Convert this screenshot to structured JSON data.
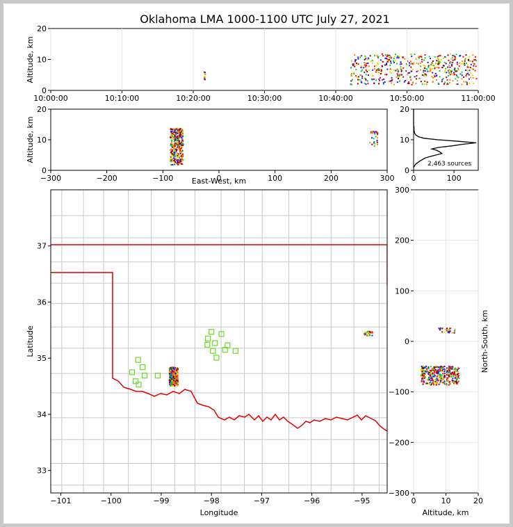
{
  "title": "Oklahoma LMA 1000-1100 UTC July 27, 2021",
  "colors": {
    "state_border": "#e00000",
    "county": "#c8c8c8",
    "station": "#66dd22",
    "grid": "#e6e6e6",
    "frame_bg": "#c8c8c8",
    "sources": [
      "#1a1aff",
      "#00cc44",
      "#dddd00",
      "#ff8800",
      "#ff0000",
      "#880000"
    ]
  },
  "chart_data": [
    {
      "id": "time_height",
      "type": "scatter",
      "ylabel": "Altitude, km",
      "ylim": [
        0,
        20
      ],
      "yticks": [
        "0",
        "10",
        "20"
      ],
      "xlim_seconds": [
        0,
        3600
      ],
      "xticks": [
        "10:00:00",
        "10:10:00",
        "10:20:00",
        "10:30:00",
        "10:40:00",
        "10:50:00",
        "11:00:00"
      ],
      "clusters": [
        {
          "t": [
            1285,
            1295
          ],
          "alt": [
            3,
            6.5
          ],
          "n": 12
        },
        {
          "t": [
            2520,
            3580
          ],
          "alt": [
            2,
            12
          ],
          "n": 520
        }
      ]
    },
    {
      "id": "ew_altitude",
      "type": "scatter",
      "xlabel": "East-West, km",
      "ylabel": "Altitude, km",
      "xlim": [
        -300,
        300
      ],
      "ylim": [
        0,
        20
      ],
      "xticks": [
        "−300",
        "−200",
        "−100",
        "0",
        "100",
        "200",
        "300"
      ],
      "yticks": [
        "0",
        "10",
        "20"
      ],
      "clusters": [
        {
          "x": [
            -88,
            -65
          ],
          "alt": [
            2,
            14
          ],
          "n": 360
        },
        {
          "x": [
            268,
            282
          ],
          "alt": [
            8,
            13
          ],
          "n": 30
        }
      ]
    },
    {
      "id": "altitude_histogram",
      "type": "line",
      "annotation": "2,463 sources",
      "xlim": [
        0,
        160
      ],
      "ylim": [
        0,
        20
      ],
      "xticks": [
        "0",
        "100"
      ],
      "yticks": [
        "0",
        "10",
        "20"
      ],
      "alt": [
        1.0,
        2.0,
        3.0,
        4.0,
        4.5,
        5.0,
        5.5,
        6.0,
        6.5,
        7.0,
        7.5,
        8.0,
        8.5,
        9.0,
        9.5,
        10.0,
        10.5,
        11.0,
        11.5,
        12.0,
        13.0,
        14.0,
        15.0,
        16.0,
        18.0,
        20.0
      ],
      "count": [
        0,
        5,
        15,
        28,
        40,
        55,
        70,
        65,
        58,
        45,
        62,
        95,
        120,
        155,
        110,
        60,
        25,
        12,
        6,
        3,
        1,
        1,
        0,
        0,
        0,
        0
      ]
    },
    {
      "id": "plan_view",
      "type": "scatter",
      "xlabel": "Longitude",
      "ylabel": "Latitude",
      "xlim": [
        -101.2,
        -94.5
      ],
      "ylim": [
        32.6,
        38.0
      ],
      "xticks": [
        "−101",
        "−100",
        "−99",
        "−98",
        "−97",
        "−96",
        "−95"
      ],
      "yticks": [
        "33",
        "34",
        "35",
        "36",
        "37"
      ],
      "stations": [
        {
          "lon": -99.46,
          "lat": 34.97
        },
        {
          "lon": -99.37,
          "lat": 34.84
        },
        {
          "lon": -99.58,
          "lat": 34.75
        },
        {
          "lon": -99.33,
          "lat": 34.69
        },
        {
          "lon": -99.07,
          "lat": 34.69
        },
        {
          "lon": -99.51,
          "lat": 34.59
        },
        {
          "lon": -99.45,
          "lat": 34.53
        },
        {
          "lon": -98.0,
          "lat": 35.47
        },
        {
          "lon": -97.8,
          "lat": 35.43
        },
        {
          "lon": -98.07,
          "lat": 35.35
        },
        {
          "lon": -97.93,
          "lat": 35.27
        },
        {
          "lon": -98.08,
          "lat": 35.24
        },
        {
          "lon": -97.68,
          "lat": 35.23
        },
        {
          "lon": -97.97,
          "lat": 35.13
        },
        {
          "lon": -97.73,
          "lat": 35.15
        },
        {
          "lon": -97.52,
          "lat": 35.13
        },
        {
          "lon": -97.9,
          "lat": 35.01
        }
      ],
      "clusters": [
        {
          "lon": [
            -98.85,
            -98.68
          ],
          "lat": [
            34.52,
            34.85
          ],
          "n": 380
        },
        {
          "lon": [
            -94.97,
            -94.8
          ],
          "lat": [
            35.41,
            35.49
          ],
          "n": 30
        }
      ]
    },
    {
      "id": "ns_altitude",
      "type": "scatter",
      "xlabel": "Altitude, km",
      "ylabel": "North-South, km",
      "xlim": [
        0,
        20
      ],
      "ylim": [
        -300,
        300
      ],
      "xticks": [
        "0",
        "10",
        "20"
      ],
      "yticks": [
        "−300",
        "−200",
        "−100",
        "0",
        "100",
        "200",
        "300"
      ],
      "clusters": [
        {
          "alt": [
            2,
            14
          ],
          "y": [
            -85,
            -48
          ],
          "n": 380
        },
        {
          "alt": [
            7.5,
            13
          ],
          "y": [
            18,
            28
          ],
          "n": 30
        }
      ]
    }
  ]
}
